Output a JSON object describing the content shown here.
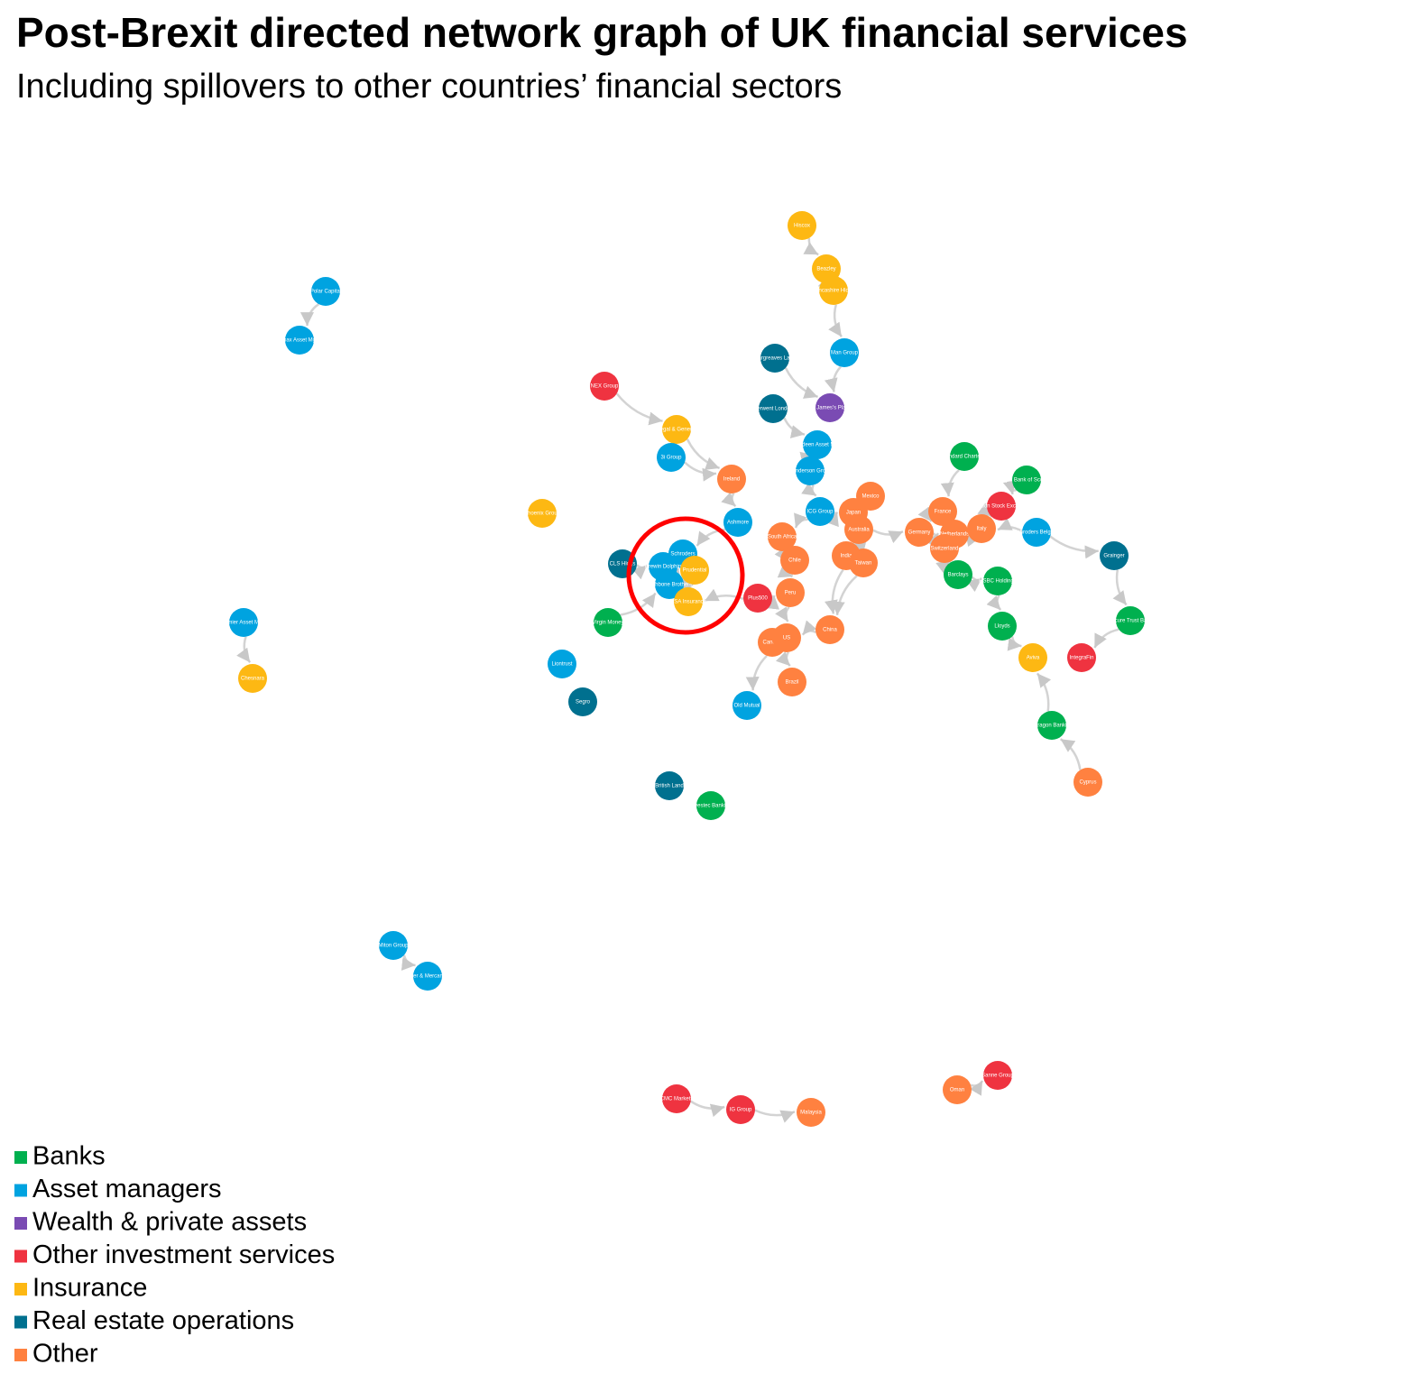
{
  "header": {
    "title": "Post-Brexit directed network graph of UK financial services",
    "subtitle": "Including spillovers to other countries’ financial sectors"
  },
  "legend": [
    {
      "name": "Banks",
      "color": "#00b04f"
    },
    {
      "name": "Asset managers",
      "color": "#00a3e0"
    },
    {
      "name": "Wealth & private assets",
      "color": "#7a4bb3"
    },
    {
      "name": "Other investment services",
      "color": "#ef3340"
    },
    {
      "name": "Insurance",
      "color": "#fdb813"
    },
    {
      "name": "Real estate operations",
      "color": "#00708f"
    },
    {
      "name": "Other",
      "color": "#ff8140"
    }
  ],
  "nodes": [
    {
      "label": "Hiscox",
      "group": 4
    },
    {
      "label": "Beazley",
      "group": 4
    },
    {
      "label": "Lancashire Hldgs",
      "group": 4
    },
    {
      "label": "Man Group",
      "group": 1
    },
    {
      "label": "Hargreaves Lans",
      "group": 5
    },
    {
      "label": "St. James's Place",
      "group": 2
    },
    {
      "label": "Derwent London",
      "group": 5
    },
    {
      "label": "NEX Group",
      "group": 3
    },
    {
      "label": "Legal & General",
      "group": 4
    },
    {
      "label": "3i Group",
      "group": 1
    },
    {
      "label": "Aberdeen Asset Mgmt",
      "group": 1
    },
    {
      "label": "Henderson Group",
      "group": 1
    },
    {
      "label": "Ireland",
      "group": 6
    },
    {
      "label": "Phoenix Group",
      "group": 4
    },
    {
      "label": "ICG Group",
      "group": 1
    },
    {
      "label": "Mexico",
      "group": 6
    },
    {
      "label": "Japan",
      "group": 6
    },
    {
      "label": "Australia",
      "group": 6
    },
    {
      "label": "Ashmore",
      "group": 1
    },
    {
      "label": "South Africa",
      "group": 6
    },
    {
      "label": "Chile",
      "group": 6
    },
    {
      "label": "Schroders",
      "group": 1
    },
    {
      "label": "CLS Hldgs",
      "group": 5
    },
    {
      "label": "Brewin Dolphin",
      "group": 1
    },
    {
      "label": "Rathbone Brothers",
      "group": 1
    },
    {
      "label": "Prudential",
      "group": 4
    },
    {
      "label": "RSA Insurance",
      "group": 4
    },
    {
      "label": "Plus500",
      "group": 3
    },
    {
      "label": "Peru",
      "group": 6
    },
    {
      "label": "India",
      "group": 6
    },
    {
      "label": "Taiwan",
      "group": 6
    },
    {
      "label": "China",
      "group": 6
    },
    {
      "label": "Canada",
      "group": 6
    },
    {
      "label": "US",
      "group": 6
    },
    {
      "label": "Brazil",
      "group": 6
    },
    {
      "label": "Old Mutual",
      "group": 1
    },
    {
      "label": "Virgin Money",
      "group": 0
    },
    {
      "label": "Liontrust",
      "group": 1
    },
    {
      "label": "Segro",
      "group": 5
    },
    {
      "label": "British Land",
      "group": 5
    },
    {
      "label": "Investec Banking",
      "group": 0
    },
    {
      "label": "Standard Chartered",
      "group": 0
    },
    {
      "label": "Royal Bank of Scotland",
      "group": 0
    },
    {
      "label": "London Stock Exchange",
      "group": 3
    },
    {
      "label": "Schroders Belgium",
      "group": 1
    },
    {
      "label": "France",
      "group": 6
    },
    {
      "label": "Germany",
      "group": 6
    },
    {
      "label": "Netherlands",
      "group": 6
    },
    {
      "label": "Italy",
      "group": 6
    },
    {
      "label": "Switzerland",
      "group": 6
    },
    {
      "label": "Barclays",
      "group": 0
    },
    {
      "label": "HSBC Holdings",
      "group": 0
    },
    {
      "label": "Lloyds",
      "group": 0
    },
    {
      "label": "Grainger",
      "group": 5
    },
    {
      "label": "Secure Trust Bank",
      "group": 0
    },
    {
      "label": "Aviva",
      "group": 4
    },
    {
      "label": "IntegraFin",
      "group": 3
    },
    {
      "label": "Paragon Banking",
      "group": 0
    },
    {
      "label": "Cyprus",
      "group": 6
    },
    {
      "label": "Polar Capital",
      "group": 1
    },
    {
      "label": "Impax Asset Mgmt",
      "group": 1
    },
    {
      "label": "Premier Asset Mgmt",
      "group": 1
    },
    {
      "label": "Chesnara",
      "group": 4
    },
    {
      "label": "Miton Group",
      "group": 1
    },
    {
      "label": "River & Mercantile",
      "group": 1
    },
    {
      "label": "CMC Markets",
      "group": 3
    },
    {
      "label": "IG Group",
      "group": 3
    },
    {
      "label": "Malaysia",
      "group": 6
    },
    {
      "label": "Oman",
      "group": 6
    },
    {
      "label": "Sanne Group",
      "group": 3
    }
  ],
  "edges": [
    [
      0,
      1
    ],
    [
      1,
      2
    ],
    [
      2,
      3
    ],
    [
      3,
      5
    ],
    [
      4,
      5
    ],
    [
      6,
      10
    ],
    [
      10,
      11
    ],
    [
      11,
      14
    ],
    [
      7,
      8
    ],
    [
      8,
      12
    ],
    [
      9,
      12
    ],
    [
      12,
      18
    ],
    [
      18,
      21
    ],
    [
      14,
      19
    ],
    [
      14,
      16
    ],
    [
      15,
      17
    ],
    [
      16,
      17
    ],
    [
      17,
      46
    ],
    [
      19,
      20
    ],
    [
      20,
      28
    ],
    [
      21,
      25
    ],
    [
      23,
      25
    ],
    [
      24,
      25
    ],
    [
      22,
      23
    ],
    [
      27,
      26
    ],
    [
      28,
      33
    ],
    [
      33,
      32
    ],
    [
      32,
      35
    ],
    [
      33,
      34
    ],
    [
      29,
      31
    ],
    [
      30,
      31
    ],
    [
      31,
      33
    ],
    [
      27,
      28
    ],
    [
      29,
      17
    ],
    [
      36,
      24
    ],
    [
      41,
      45
    ],
    [
      42,
      43
    ],
    [
      43,
      48
    ],
    [
      44,
      48
    ],
    [
      45,
      46
    ],
    [
      46,
      47
    ],
    [
      47,
      48
    ],
    [
      48,
      49
    ],
    [
      49,
      50
    ],
    [
      50,
      51
    ],
    [
      51,
      52
    ],
    [
      52,
      55
    ],
    [
      44,
      53
    ],
    [
      53,
      54
    ],
    [
      54,
      56
    ],
    [
      57,
      55
    ],
    [
      58,
      57
    ],
    [
      59,
      60
    ],
    [
      61,
      62
    ],
    [
      63,
      64
    ],
    [
      65,
      66
    ],
    [
      66,
      67
    ],
    [
      68,
      69
    ]
  ]
}
